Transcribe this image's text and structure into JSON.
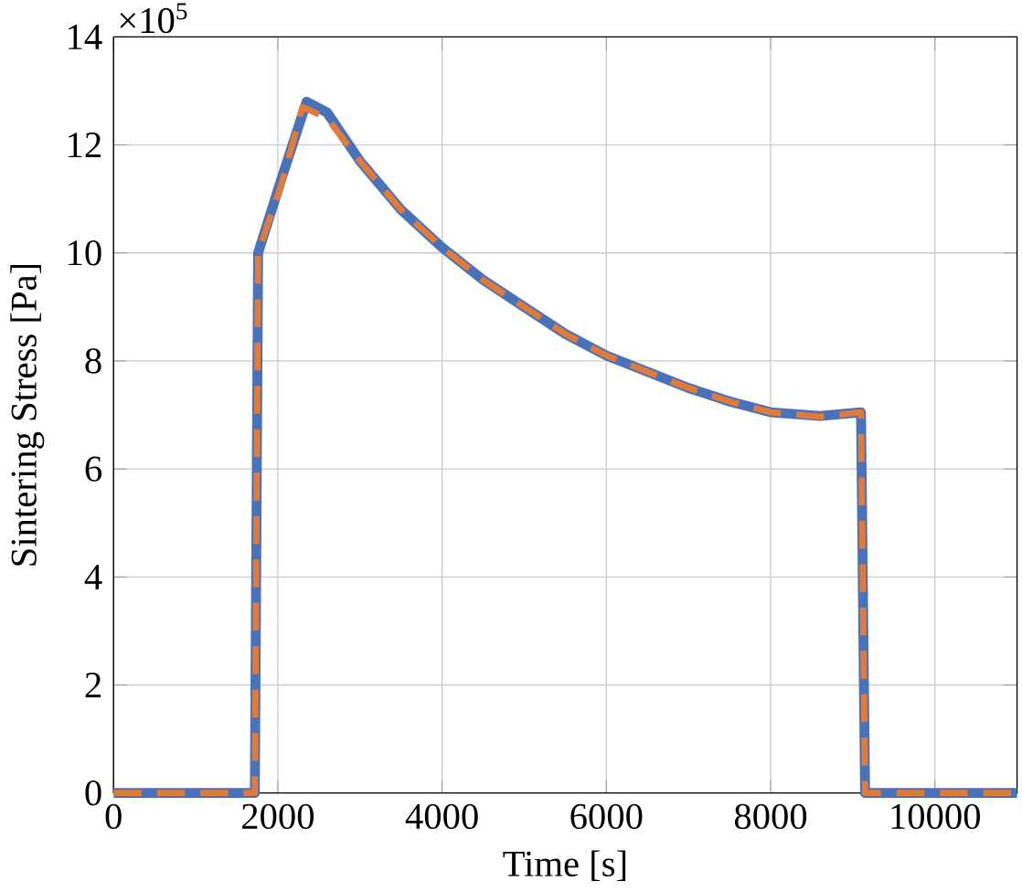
{
  "chart_data": {
    "type": "line",
    "xlabel": "Time [s]",
    "ylabel": "Sintering Stress [Pa]",
    "annotations": [
      "×10$^{5}$"
    ],
    "xlim": [
      0,
      11000
    ],
    "ylim": [
      0,
      14
    ],
    "xticks": [
      0,
      2000,
      4000,
      6000,
      8000,
      10000
    ],
    "yticks": [
      0,
      2,
      4,
      6,
      8,
      10,
      12,
      14
    ],
    "grid": true,
    "series": [
      {
        "color": "#4a72b8",
        "line_style": "solid",
        "x": [
          0,
          1000,
          1720,
          1760,
          2050,
          2350,
          2600,
          3000,
          3500,
          4000,
          4500,
          5000,
          5500,
          6000,
          6500,
          7000,
          7500,
          8000,
          8600,
          9100,
          9150,
          10000,
          11000
        ],
        "values": [
          0,
          0,
          0,
          10,
          11.4,
          12.8,
          12.6,
          11.7,
          10.8,
          10.1,
          9.5,
          9.0,
          8.5,
          8.1,
          7.8,
          7.5,
          7.25,
          7.05,
          6.98,
          7.05,
          0,
          0,
          0
        ]
      },
      {
        "color": "#e07b3c",
        "line_style": "dashed",
        "x": [
          0,
          1000,
          1720,
          1760,
          2050,
          2300,
          2600,
          3000,
          3500,
          4000,
          4500,
          5000,
          5500,
          6000,
          6500,
          7000,
          7500,
          8000,
          8600,
          9100,
          9150,
          10000,
          11000
        ],
        "values": [
          0,
          0,
          0,
          10,
          11.3,
          12.7,
          12.5,
          11.7,
          10.8,
          10.1,
          9.5,
          9.0,
          8.5,
          8.1,
          7.8,
          7.5,
          7.25,
          7.05,
          6.97,
          7.05,
          0,
          0,
          0
        ]
      }
    ]
  }
}
